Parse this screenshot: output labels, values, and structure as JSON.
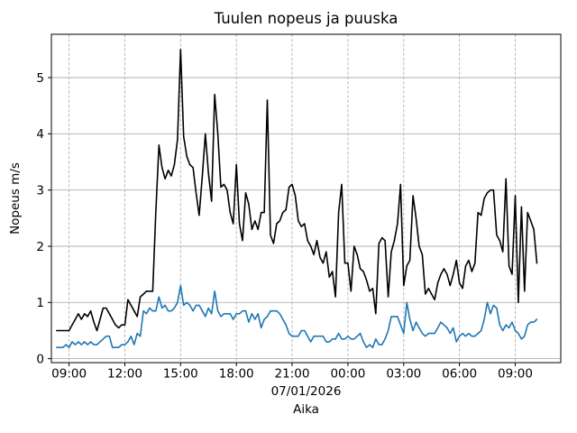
{
  "figure": {
    "background": "#ffffff"
  },
  "chart_data": {
    "type": "line",
    "title": "Tuulen nopeus ja puuska",
    "xlabel": "Aika",
    "x_date_label": "07/01/2026",
    "ylabel": "Nopeus m/s",
    "x_tick_labels": [
      "09:00",
      "12:00",
      "15:00",
      "18:00",
      "21:00",
      "00:00",
      "03:00",
      "06:00",
      "09:00"
    ],
    "x_tick_hours": [
      9,
      12,
      15,
      18,
      21,
      24,
      27,
      30,
      33
    ],
    "y_ticks": [
      0,
      1,
      2,
      3,
      4,
      5
    ],
    "y_tick_labels": [
      "0",
      "1",
      "2",
      "3",
      "4",
      "5"
    ],
    "ylim": [
      -0.07,
      5.77
    ],
    "xlim_hours": [
      8.05,
      35.45
    ],
    "x_start_hour": 8.3333,
    "x_step_hours": 0.1666667,
    "sample_interval_minutes": 10,
    "start_time": "08:20",
    "end_time_next_day": "10:10",
    "grid_on": true,
    "grid_color": "#b0b0b0",
    "axes_color": "#000000",
    "legend": "none",
    "series": [
      {
        "name": "Puuska (gust)",
        "color": "#000000",
        "values": [
          0.5,
          0.5,
          0.5,
          0.5,
          0.5,
          0.6,
          0.7,
          0.8,
          0.7,
          0.8,
          0.75,
          0.85,
          0.65,
          0.5,
          0.7,
          0.9,
          0.9,
          0.8,
          0.7,
          0.6,
          0.55,
          0.6,
          0.6,
          1.05,
          0.95,
          0.85,
          0.75,
          1.1,
          1.15,
          1.2,
          1.2,
          1.2,
          2.6,
          3.8,
          3.4,
          3.2,
          3.35,
          3.25,
          3.45,
          3.9,
          5.5,
          3.95,
          3.6,
          3.45,
          3.4,
          2.95,
          2.55,
          3.25,
          4.0,
          3.3,
          2.8,
          4.7,
          4.0,
          3.05,
          3.1,
          3.0,
          2.6,
          2.4,
          3.45,
          2.4,
          2.1,
          2.95,
          2.75,
          2.3,
          2.45,
          2.3,
          2.6,
          2.6,
          4.6,
          2.2,
          2.05,
          2.4,
          2.45,
          2.6,
          2.65,
          3.05,
          3.1,
          2.9,
          2.45,
          2.35,
          2.4,
          2.1,
          2.0,
          1.85,
          2.1,
          1.8,
          1.7,
          1.9,
          1.45,
          1.55,
          1.1,
          2.6,
          3.1,
          1.7,
          1.7,
          1.2,
          2.0,
          1.85,
          1.6,
          1.55,
          1.4,
          1.2,
          1.25,
          0.8,
          2.05,
          2.15,
          2.1,
          1.1,
          1.9,
          2.1,
          2.4,
          3.1,
          1.3,
          1.65,
          1.75,
          2.9,
          2.5,
          2.0,
          1.85,
          1.15,
          1.25,
          1.15,
          1.05,
          1.35,
          1.5,
          1.6,
          1.5,
          1.3,
          1.5,
          1.75,
          1.35,
          1.25,
          1.65,
          1.75,
          1.55,
          1.7,
          2.6,
          2.55,
          2.85,
          2.95,
          3.0,
          3.0,
          2.2,
          2.1,
          1.9,
          3.2,
          1.65,
          1.5,
          2.9,
          1.0,
          2.7,
          1.2,
          2.6,
          2.45,
          2.3,
          1.7
        ]
      },
      {
        "name": "Tuulen nopeus (wind speed)",
        "color": "#1f77b4",
        "values": [
          0.2,
          0.2,
          0.2,
          0.25,
          0.2,
          0.3,
          0.25,
          0.3,
          0.25,
          0.3,
          0.25,
          0.3,
          0.25,
          0.25,
          0.3,
          0.35,
          0.4,
          0.4,
          0.2,
          0.2,
          0.2,
          0.25,
          0.25,
          0.3,
          0.4,
          0.25,
          0.45,
          0.4,
          0.85,
          0.8,
          0.9,
          0.85,
          0.85,
          1.1,
          0.9,
          0.95,
          0.85,
          0.85,
          0.9,
          1.0,
          1.3,
          0.95,
          1.0,
          0.95,
          0.85,
          0.95,
          0.95,
          0.85,
          0.75,
          0.9,
          0.8,
          1.2,
          0.85,
          0.75,
          0.8,
          0.8,
          0.8,
          0.7,
          0.8,
          0.8,
          0.85,
          0.85,
          0.65,
          0.8,
          0.7,
          0.8,
          0.55,
          0.7,
          0.75,
          0.85,
          0.85,
          0.85,
          0.8,
          0.7,
          0.6,
          0.45,
          0.4,
          0.4,
          0.4,
          0.5,
          0.5,
          0.4,
          0.3,
          0.4,
          0.4,
          0.4,
          0.4,
          0.3,
          0.3,
          0.35,
          0.35,
          0.45,
          0.35,
          0.35,
          0.4,
          0.35,
          0.35,
          0.4,
          0.45,
          0.3,
          0.2,
          0.25,
          0.2,
          0.35,
          0.25,
          0.25,
          0.35,
          0.5,
          0.75,
          0.75,
          0.75,
          0.6,
          0.45,
          1.0,
          0.7,
          0.5,
          0.65,
          0.55,
          0.45,
          0.4,
          0.45,
          0.45,
          0.45,
          0.55,
          0.65,
          0.6,
          0.55,
          0.45,
          0.55,
          0.3,
          0.4,
          0.45,
          0.4,
          0.45,
          0.4,
          0.4,
          0.45,
          0.5,
          0.7,
          1.0,
          0.8,
          0.95,
          0.9,
          0.6,
          0.5,
          0.6,
          0.55,
          0.65,
          0.5,
          0.45,
          0.35,
          0.4,
          0.6,
          0.65,
          0.65,
          0.7
        ]
      }
    ]
  }
}
